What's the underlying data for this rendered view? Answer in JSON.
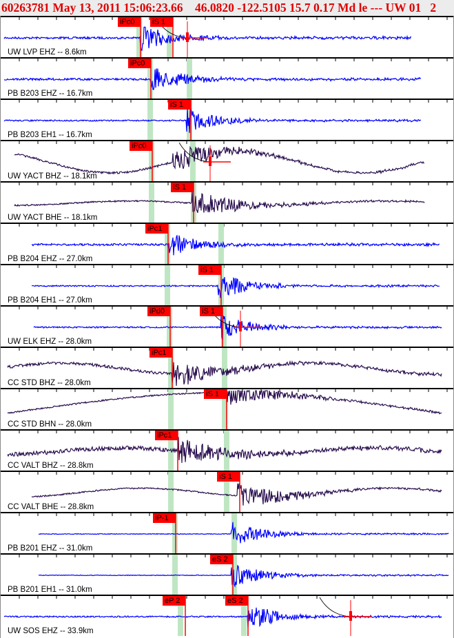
{
  "header": {
    "title": "60263781 May 13, 2011 15:06:23.66    46.0820 -122.5105 15.7 0.17 Md le --- UW 01   2"
  },
  "colors": {
    "short_period": "#0000ff",
    "broadband": "#2a0f4f",
    "pick": "#ff0000",
    "window": "#bfe6c3"
  },
  "panels": [
    {
      "station": "UW LVP EHZ -- 8.6km",
      "picks": [
        "iPc0",
        "iS 1"
      ]
    },
    {
      "station": "PB B203 EHZ -- 16.7km",
      "picks": [
        "iPc0"
      ]
    },
    {
      "station": "PB B203 EH1 -- 16.7km",
      "picks": [
        "iS 1"
      ]
    },
    {
      "station": "UW YACT BHZ -- 18.1km",
      "picks": [
        "iPc0"
      ]
    },
    {
      "station": "UW YACT BHE -- 18.1km",
      "picks": [
        "iS 1"
      ]
    },
    {
      "station": "PB B204 EHZ -- 27.0km",
      "picks": [
        "iPc1"
      ]
    },
    {
      "station": "PB B204 EH1 -- 27.0km",
      "picks": [
        "iS 1"
      ]
    },
    {
      "station": "UW ELK EHZ -- 28.0km",
      "picks": [
        "iPd0",
        "iS 1"
      ]
    },
    {
      "station": "CC STD BHZ -- 28.0km",
      "picks": [
        "iPc1"
      ]
    },
    {
      "station": "CC STD BHN -- 28.0km",
      "picks": [
        "iS 1"
      ]
    },
    {
      "station": "CC VALT BHZ -- 28.8km",
      "picks": [
        "iPc1"
      ]
    },
    {
      "station": "CC VALT BHE -- 28.8km",
      "picks": [
        "iS 1"
      ]
    },
    {
      "station": "PB B201 EHZ -- 31.0km",
      "picks": [
        "iP-1"
      ]
    },
    {
      "station": "PB B201 EH1 -- 31.0km",
      "picks": [
        "eS 2"
      ]
    },
    {
      "station": "UW SOS EHZ -- 33.9km",
      "picks": [
        "eP 2",
        "eS 2"
      ]
    }
  ]
}
